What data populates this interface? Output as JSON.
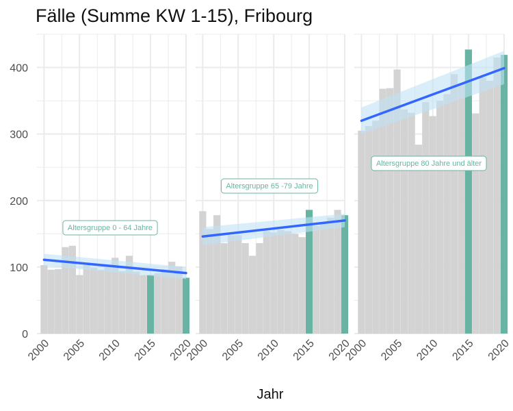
{
  "chart_data": {
    "type": "bar",
    "title": "Fälle (Summe KW 1-15), Fribourg",
    "xlabel": "Jahr",
    "ylabel": "",
    "ylim": [
      0,
      450
    ],
    "xlim": [
      1999,
      2020
    ],
    "y_ticks": [
      0,
      100,
      200,
      300,
      400
    ],
    "x_ticks": [
      2000,
      2005,
      2010,
      2015,
      2020
    ],
    "x_tick_labels": [
      "2000",
      "2005",
      "2010",
      "2015",
      "2020"
    ],
    "grid": true,
    "facets": [
      {
        "label": "Altersgruppe 0 - 64 Jahre",
        "years": [
          2000,
          2001,
          2002,
          2003,
          2004,
          2005,
          2006,
          2007,
          2008,
          2009,
          2010,
          2011,
          2012,
          2013,
          2014,
          2015,
          2016,
          2017,
          2018,
          2019,
          2020
        ],
        "values": [
          103,
          96,
          97,
          130,
          132,
          88,
          103,
          99,
          96,
          100,
          114,
          94,
          117,
          93,
          88,
          88,
          91,
          97,
          108,
          101,
          84
        ],
        "highlight_years": [
          2015,
          2020
        ],
        "trend": {
          "start": 111,
          "end": 91
        },
        "ci_upper_start": 120,
        "ci_upper_end": 100,
        "ci_lower_start": 102,
        "ci_lower_end": 82
      },
      {
        "label": "Altersgruppe 65 -79 Jahre",
        "years": [
          2000,
          2001,
          2002,
          2003,
          2004,
          2005,
          2006,
          2007,
          2008,
          2009,
          2010,
          2011,
          2012,
          2013,
          2014,
          2015,
          2016,
          2017,
          2018,
          2019,
          2020
        ],
        "values": [
          184,
          157,
          178,
          136,
          148,
          148,
          136,
          117,
          136,
          154,
          152,
          156,
          154,
          150,
          145,
          186,
          162,
          166,
          174,
          186,
          178
        ],
        "highlight_years": [
          2015,
          2020
        ],
        "trend": {
          "start": 146,
          "end": 170
        },
        "ci_upper_start": 160,
        "ci_upper_end": 180,
        "ci_lower_start": 133,
        "ci_lower_end": 160
      },
      {
        "label": "Altersgruppe 80 Jahre und älter",
        "years": [
          2000,
          2001,
          2002,
          2003,
          2004,
          2005,
          2006,
          2007,
          2008,
          2009,
          2010,
          2011,
          2012,
          2013,
          2014,
          2015,
          2016,
          2017,
          2018,
          2019,
          2020
        ],
        "values": [
          305,
          312,
          320,
          368,
          369,
          397,
          337,
          332,
          284,
          348,
          327,
          350,
          360,
          390,
          375,
          427,
          331,
          385,
          380,
          415,
          419
        ],
        "highlight_years": [
          2015,
          2020
        ],
        "trend": {
          "start": 320,
          "end": 399
        },
        "ci_upper_start": 340,
        "ci_upper_end": 425,
        "ci_lower_start": 300,
        "ci_lower_end": 375
      }
    ],
    "colors": {
      "bar": "#d3d3d3",
      "highlight": "#69b3a2",
      "trend": "#3366ff",
      "ci": "#bfe3f5",
      "grid": "#ebebeb",
      "annotation": "#69b3a2"
    }
  }
}
